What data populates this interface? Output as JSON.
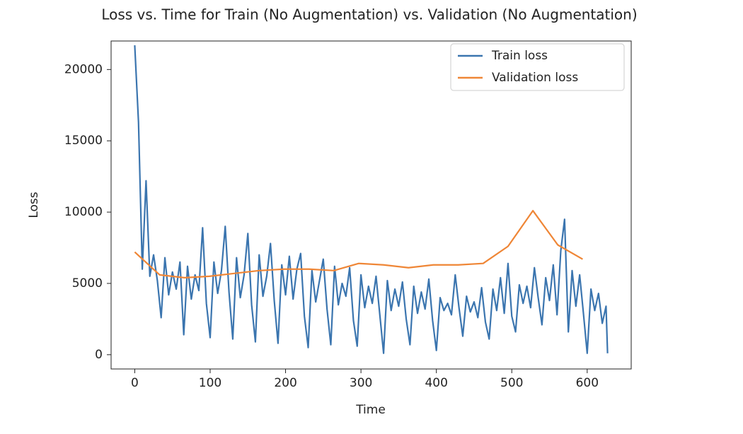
{
  "chart_data": {
    "type": "line",
    "title": "Loss vs. Time for Train (No Augmentation) vs. Validation (No Augmentation)",
    "x_label": "Time",
    "y_label": "Loss",
    "xlim": [
      -31.35,
      658.35
    ],
    "xticks": [
      0,
      100,
      200,
      300,
      400,
      500,
      600
    ],
    "ylim": [
      -1000,
      22000
    ],
    "yticks": [
      0,
      5000,
      10000,
      15000,
      20000
    ],
    "legend": "upper right",
    "grid": false,
    "series": [
      {
        "name": "Train loss",
        "color": "#3b75af",
        "x": [
          0,
          5,
          10,
          15,
          20,
          25,
          30,
          35,
          40,
          45,
          50,
          55,
          60,
          65,
          70,
          75,
          80,
          85,
          90,
          95,
          100,
          105,
          110,
          115,
          120,
          125,
          130,
          135,
          140,
          145,
          150,
          155,
          160,
          165,
          170,
          175,
          180,
          185,
          190,
          195,
          200,
          205,
          210,
          215,
          220,
          225,
          230,
          235,
          240,
          245,
          250,
          255,
          260,
          265,
          270,
          275,
          280,
          285,
          290,
          295,
          300,
          305,
          310,
          315,
          320,
          325,
          330,
          335,
          340,
          345,
          350,
          355,
          360,
          365,
          370,
          375,
          380,
          385,
          390,
          395,
          400,
          405,
          410,
          415,
          420,
          425,
          430,
          435,
          440,
          445,
          450,
          455,
          460,
          465,
          470,
          475,
          480,
          485,
          490,
          495,
          500,
          505,
          510,
          515,
          520,
          525,
          530,
          535,
          540,
          545,
          550,
          555,
          560,
          565,
          570,
          575,
          580,
          585,
          590,
          595,
          600,
          605,
          610,
          615,
          620,
          625,
          627
        ],
        "values": [
          21700,
          16300,
          6000,
          12200,
          5500,
          7000,
          5200,
          2600,
          6800,
          4200,
          5800,
          4600,
          6500,
          1400,
          6200,
          3900,
          5600,
          4500,
          8900,
          3600,
          1200,
          6500,
          4300,
          5900,
          9000,
          4400,
          1100,
          6800,
          4000,
          5600,
          8500,
          3500,
          900,
          7000,
          4100,
          5500,
          7800,
          3800,
          800,
          6300,
          4200,
          6900,
          3900,
          6000,
          7100,
          2700,
          500,
          5900,
          3700,
          5200,
          6700,
          3200,
          700,
          6200,
          3500,
          5000,
          4100,
          6100,
          2400,
          600,
          5600,
          3300,
          4800,
          3600,
          5500,
          2800,
          100,
          5200,
          3100,
          4600,
          3400,
          5100,
          2500,
          700,
          4800,
          2900,
          4400,
          3200,
          5300,
          2400,
          300,
          4000,
          3100,
          3600,
          2800,
          5600,
          3300,
          1300,
          4100,
          3000,
          3700,
          2600,
          4700,
          2300,
          1100,
          4600,
          3100,
          5400,
          2900,
          6400,
          2700,
          1600,
          4900,
          3600,
          4800,
          3300,
          6100,
          4000,
          2100,
          5400,
          3800,
          6300,
          2800,
          7300,
          9500,
          1600,
          5900,
          3400,
          5600,
          2900,
          100,
          4600,
          3100,
          4300,
          2200,
          3400,
          100
        ]
      },
      {
        "name": "Validation loss",
        "color": "#ef8636",
        "x": [
          0,
          33,
          66,
          99,
          132,
          165,
          198,
          231,
          264,
          297,
          330,
          363,
          396,
          429,
          462,
          495,
          528,
          561,
          594
        ],
        "values": [
          7200,
          5600,
          5400,
          5500,
          5700,
          5900,
          6000,
          6000,
          5900,
          6400,
          6300,
          6100,
          6300,
          6300,
          6400,
          7600,
          10100,
          7700,
          6700
        ]
      }
    ]
  }
}
